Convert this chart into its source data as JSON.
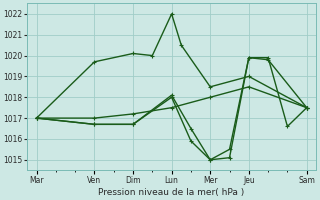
{
  "bg_color": "#cde8e4",
  "grid_color": "#a0cdc8",
  "line_color": "#1a5c1a",
  "title": "Pression niveau de la mer( hPa )",
  "ylim": [
    1014.5,
    1022.5
  ],
  "yticks": [
    1015,
    1016,
    1017,
    1018,
    1019,
    1020,
    1021,
    1022
  ],
  "x_major_ticks": [
    0,
    3,
    5,
    7,
    9,
    11,
    14
  ],
  "x_major_labels": [
    "Mar",
    "Ven",
    "Dim",
    "Lun",
    "Mer",
    "Jeu",
    "Sam"
  ],
  "xlim": [
    -0.5,
    14.5
  ],
  "series": [
    {
      "x": [
        0,
        3,
        5,
        7,
        9,
        11,
        14
      ],
      "y": [
        1017.0,
        1017.0,
        1017.2,
        1017.5,
        1018.0,
        1018.5,
        1017.5
      ]
    },
    {
      "x": [
        0,
        3,
        5,
        6,
        7,
        7.5,
        9,
        11,
        14
      ],
      "y": [
        1017.0,
        1019.7,
        1020.1,
        1020.0,
        1022.0,
        1020.5,
        1018.5,
        1019.0,
        1017.5
      ]
    },
    {
      "x": [
        0,
        3,
        5,
        7,
        8,
        9,
        10,
        11,
        12,
        14
      ],
      "y": [
        1017.0,
        1016.7,
        1016.7,
        1018.0,
        1015.9,
        1015.0,
        1015.1,
        1019.9,
        1019.8,
        1017.5
      ]
    },
    {
      "x": [
        0,
        3,
        5,
        7,
        8,
        9,
        10,
        11,
        12,
        13,
        14
      ],
      "y": [
        1017.0,
        1016.7,
        1016.7,
        1018.1,
        1016.5,
        1015.0,
        1015.5,
        1019.9,
        1019.9,
        1016.6,
        1017.5
      ]
    }
  ],
  "markersize": 3,
  "linewidth": 1.0
}
